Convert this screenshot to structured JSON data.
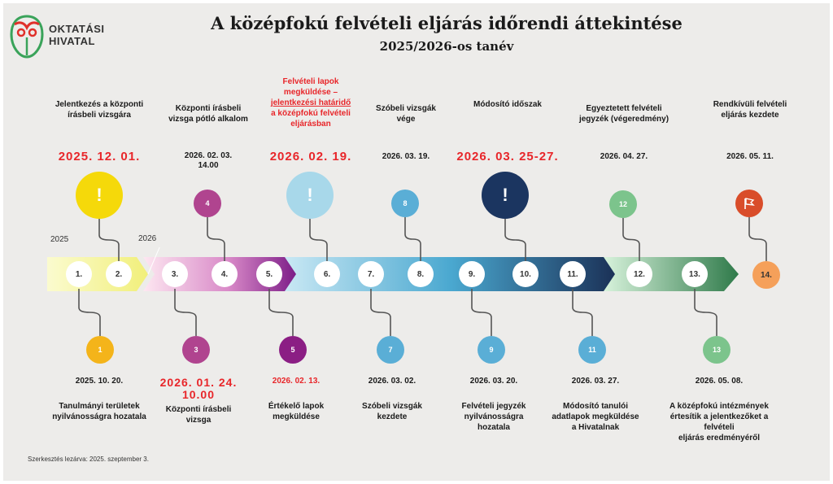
{
  "logo": {
    "line1": "OKTATÁSI",
    "line2": "HIVATAL"
  },
  "header": {
    "title": "A középfokú felvételi eljárás időrendi áttekintése",
    "subtitle": "2025/2026-os tanév"
  },
  "years": {
    "y2025": "2025",
    "y2026": "2026"
  },
  "top_events": [
    {
      "label_lines": [
        "Jelentkezés a központi",
        "írásbeli vizsgára"
      ],
      "date": "2025. 12. 01.",
      "marker": "!"
    },
    {
      "label_lines": [
        "Központi írásbeli",
        "vizsga pótló alkalom"
      ],
      "date_lines": [
        "2026. 02. 03.",
        "14.00"
      ],
      "marker": "4"
    },
    {
      "label_lines": [
        "Felvételi lapok",
        "megküldése –",
        "jelentkezési határidő",
        "a középfokú felvételi",
        "eljárásban"
      ],
      "date": "2026. 02. 19.",
      "marker": "!"
    },
    {
      "label_lines": [
        "Szóbeli vizsgák",
        "vége"
      ],
      "date": "2026. 03. 19.",
      "marker": "8"
    },
    {
      "label_lines": [
        "Módosító időszak"
      ],
      "date": "2026. 03. 25-27.",
      "marker": "!"
    },
    {
      "label_lines": [
        "Egyeztetett felvételi",
        "jegyzék (végeredmény)"
      ],
      "date": "2026. 04. 27.",
      "marker": "12"
    },
    {
      "label_lines": [
        "Rendkívüli felvételi",
        "eljárás kezdete"
      ],
      "date": "2026. 05. 11.",
      "marker": "flag-icon"
    }
  ],
  "bottom_events": [
    {
      "marker": "1",
      "date": "2025. 10. 20.",
      "label_lines": [
        "Tanulmányi területek",
        "nyilvánosságra hozatala"
      ]
    },
    {
      "marker": "3",
      "date_lines": [
        "2026. 01. 24.",
        "10.00"
      ],
      "label_lines": [
        "Központi írásbeli",
        "vizsga"
      ]
    },
    {
      "marker": "5",
      "date": "2026. 02. 13.",
      "label_lines": [
        "Értékelő lapok",
        "megküldése"
      ]
    },
    {
      "marker": "7",
      "date": "2026. 03. 02.",
      "label_lines": [
        "Szóbeli vizsgák",
        "kezdete"
      ]
    },
    {
      "marker": "9",
      "date": "2026. 03. 20.",
      "label_lines": [
        "Felvételi jegyzék",
        "nyilvánosságra",
        "hozatala"
      ]
    },
    {
      "marker": "11",
      "date": "2026. 03. 27.",
      "label_lines": [
        "Módosító tanulói",
        "adatlapok megküldése",
        "a Hivatalnak"
      ]
    },
    {
      "marker": "13",
      "date": "2026. 05. 08.",
      "label_lines": [
        "A középfokú intézmények",
        "értesítik a jelentkezőket a",
        "felvételi",
        "eljárás eredményéről"
      ]
    }
  ],
  "nodes": [
    "1.",
    "2.",
    "3.",
    "4.",
    "5.",
    "6.",
    "7.",
    "8.",
    "9.",
    "10.",
    "11.",
    "12.",
    "13.",
    "14."
  ],
  "colors": {
    "yellow": "#f5d90a",
    "orange": "#f4b41a",
    "magenta": "#b0448f",
    "purple": "#8b1e84",
    "lightblue": "#a8d8ea",
    "blue": "#5aaed6",
    "navy": "#1b3560",
    "teal": "#2a8aa0",
    "green": "#7cc48c",
    "darkgreen": "#3e9960",
    "red": "#d94d2a",
    "orange14": "#f5a05a",
    "alert_red": "#e8262a"
  },
  "footer": {
    "note": "Szerkesztés lezárva: 2025. szeptember 3."
  }
}
